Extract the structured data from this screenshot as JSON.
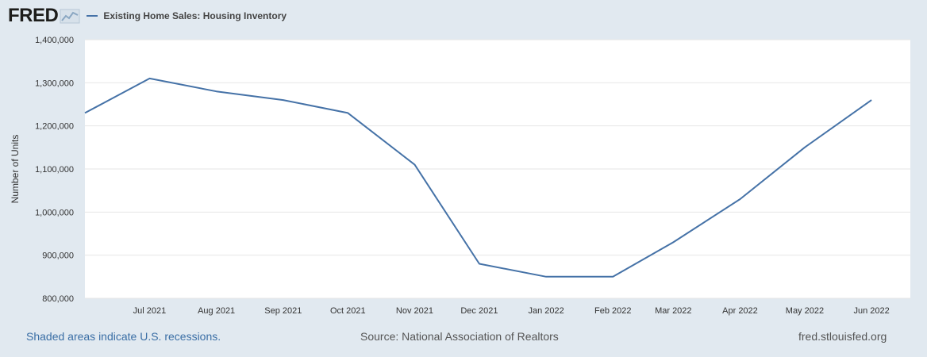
{
  "header": {
    "logo_text": "FRED",
    "legend_label": "Existing Home Sales: Housing Inventory"
  },
  "footer": {
    "recession_note": "Shaded areas indicate U.S. recessions.",
    "source": "Source: National Association of Realtors",
    "site": "fred.stlouisfed.org"
  },
  "colors": {
    "series": "#4572a7",
    "plot_background": "#ffffff",
    "page_background": "#e1e9f0",
    "gridline": "#e6e6e6"
  },
  "chart_data": {
    "type": "line",
    "title": "",
    "xlabel": "",
    "ylabel": "Number of Units",
    "x": [
      "2021-06",
      "2021-07",
      "2021-08",
      "2021-09",
      "2021-10",
      "2021-11",
      "2021-12",
      "2022-01",
      "2022-02",
      "2022-03",
      "2022-04",
      "2022-05",
      "2022-06"
    ],
    "x_tick_labels": [
      "Jul 2021",
      "Aug 2021",
      "Sep 2021",
      "Oct 2021",
      "Nov 2021",
      "Dec 2021",
      "Jan 2022",
      "Feb 2022",
      "Mar 2022",
      "Apr 2022",
      "May 2022",
      "Jun 2022"
    ],
    "y_ticks": [
      800000,
      900000,
      1000000,
      1100000,
      1200000,
      1300000,
      1400000
    ],
    "y_tick_labels": [
      "800,000",
      "900,000",
      "1,000,000",
      "1,100,000",
      "1,200,000",
      "1,300,000",
      "1,400,000"
    ],
    "ylim": [
      800000,
      1400000
    ],
    "grid": true,
    "legend_position": "top-left",
    "series": [
      {
        "name": "Existing Home Sales: Housing Inventory",
        "color": "#4572a7",
        "values": [
          1230000,
          1310000,
          1280000,
          1260000,
          1230000,
          1110000,
          880000,
          850000,
          850000,
          930000,
          1030000,
          1150000,
          1260000
        ]
      }
    ]
  }
}
